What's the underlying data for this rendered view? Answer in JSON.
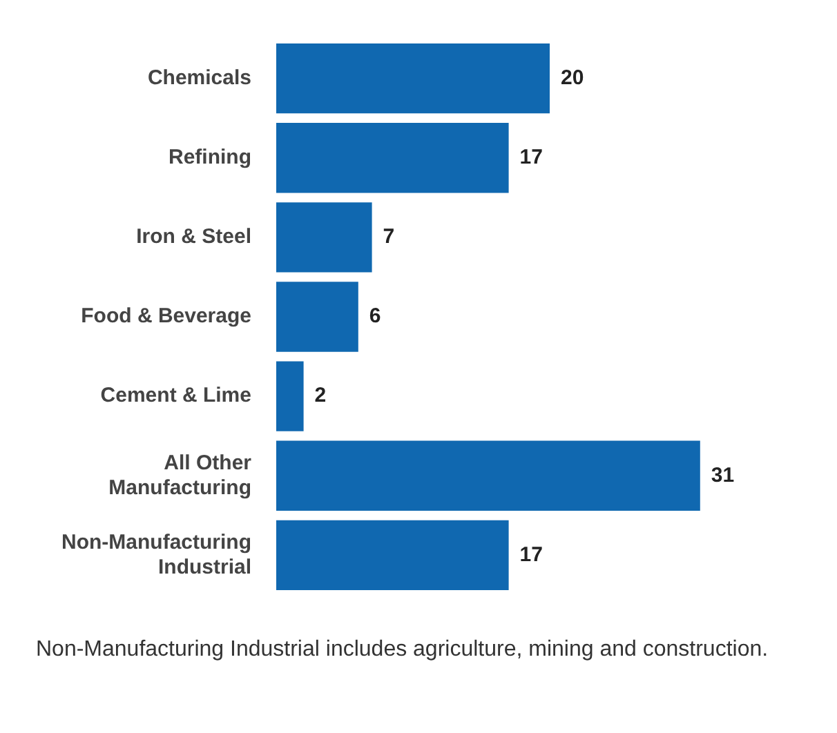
{
  "chart_data": {
    "type": "bar",
    "orientation": "horizontal",
    "categories": [
      "Chemicals",
      "Refining",
      "Iron & Steel",
      "Food & Beverage",
      "Cement & Lime",
      "All Other Manufacturing",
      "Non-Manufacturing Industrial"
    ],
    "values": [
      20,
      17,
      7,
      6,
      2,
      31,
      17
    ],
    "color": "#1068b0",
    "data_labels": true,
    "annotations": [
      "Non-Manufacturing Industrial includes agriculture, mining and construction."
    ]
  }
}
